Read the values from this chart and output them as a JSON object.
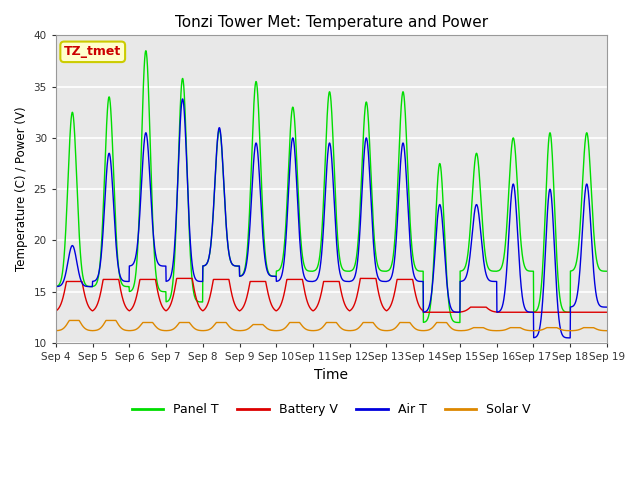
{
  "title": "Tonzi Tower Met: Temperature and Power",
  "xlabel": "Time",
  "ylabel": "Temperature (C) / Power (V)",
  "ylim": [
    10,
    40
  ],
  "yticks": [
    10,
    15,
    20,
    25,
    30,
    35,
    40
  ],
  "plot_bg_color": "#e8e8e8",
  "fig_bg_color": "#ffffff",
  "grid_color": "#ffffff",
  "colors": {
    "panel_t": "#00dd00",
    "battery_v": "#dd0000",
    "air_t": "#0000dd",
    "solar_v": "#dd8800"
  },
  "xtick_labels": [
    "Sep 4",
    "Sep 5",
    "Sep 6",
    "Sep 7",
    "Sep 8",
    "Sep 9",
    "Sep 10",
    "Sep 11",
    "Sep 12",
    "Sep 13",
    "Sep 14",
    "Sep 15",
    "Sep 16",
    "Sep 17",
    "Sep 18",
    "Sep 19"
  ],
  "annotation_text": "TZ_tmet",
  "annotation_color": "#cc0000",
  "annotation_bg": "#ffffcc",
  "annotation_edge": "#cccc00",
  "legend_entries": [
    "Panel T",
    "Battery V",
    "Air T",
    "Solar V"
  ],
  "panel_t_peaks": [
    32.5,
    34.0,
    38.5,
    35.8,
    30.8,
    35.5,
    33.0,
    34.5,
    33.5,
    34.5,
    27.5,
    28.5,
    30.0,
    30.5,
    30.5
  ],
  "panel_t_troughs": [
    15.5,
    15.5,
    15.0,
    14.0,
    17.5,
    16.5,
    17.0,
    17.0,
    17.0,
    17.0,
    12.0,
    17.0,
    17.0,
    13.0,
    17.0
  ],
  "air_t_peaks": [
    19.5,
    28.5,
    30.5,
    33.8,
    31.0,
    29.5,
    30.0,
    29.5,
    30.0,
    29.5,
    23.5,
    23.5,
    25.5,
    25.0,
    25.5
  ],
  "air_t_troughs": [
    15.5,
    16.0,
    17.5,
    16.0,
    17.5,
    16.5,
    16.0,
    16.0,
    16.0,
    16.0,
    13.0,
    16.0,
    13.0,
    10.5,
    13.5
  ],
  "bat_peaks": [
    16.0,
    16.2,
    16.2,
    16.3,
    16.2,
    16.0,
    16.2,
    16.0,
    16.3,
    16.2,
    13.0,
    13.5,
    13.0,
    13.0,
    13.0
  ],
  "bat_troughs": [
    13.0,
    13.0,
    13.0,
    13.0,
    13.0,
    13.0,
    13.0,
    13.0,
    13.0,
    13.0,
    13.0,
    13.0,
    13.0,
    13.0,
    13.0
  ],
  "sol_peaks": [
    12.2,
    12.2,
    12.0,
    12.0,
    12.0,
    11.8,
    12.0,
    12.0,
    12.0,
    12.0,
    12.0,
    11.5,
    11.5,
    11.5,
    11.5
  ],
  "sol_troughs": [
    11.2,
    11.2,
    11.2,
    11.2,
    11.2,
    11.2,
    11.2,
    11.2,
    11.2,
    11.2,
    11.2,
    11.2,
    11.2,
    11.2,
    11.2
  ]
}
